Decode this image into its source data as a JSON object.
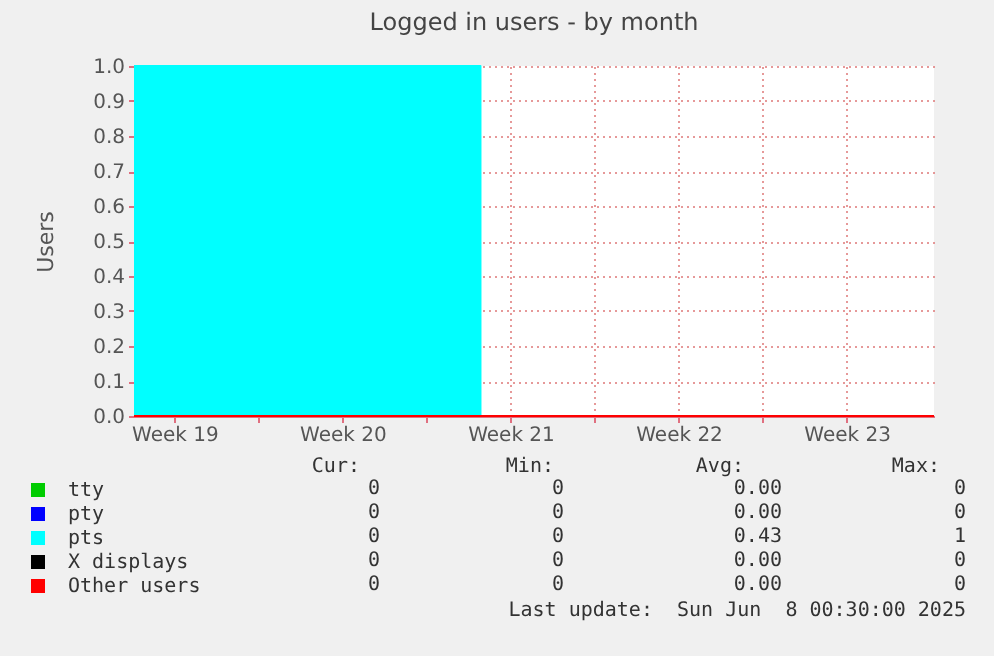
{
  "chart_data": {
    "type": "area",
    "title": "Logged in users - by month",
    "ylabel": "Users",
    "x": [
      "2025-05-06T19:40",
      "2025-05-21T06:00",
      "2025-05-21T06:00",
      "2025-06-09T03:20"
    ],
    "series": [
      {
        "name": "tty",
        "type": "line",
        "color": "#00cc00",
        "values": [
          null,
          null,
          null,
          null
        ]
      },
      {
        "name": "pty",
        "type": "line",
        "color": "#0000ff",
        "values": [
          null,
          null,
          null,
          null
        ]
      },
      {
        "name": "pts",
        "color": "#00ffff",
        "values": [
          1,
          1,
          0,
          0
        ]
      },
      {
        "name": "X displays",
        "type": "line",
        "color": "#000000",
        "values": [
          null,
          null,
          null,
          null
        ]
      },
      {
        "name": "Other users",
        "type": "line",
        "color": "#ff0000",
        "values": [
          0,
          0,
          0,
          0
        ]
      }
    ],
    "xlim": [
      "2025-05-06T19:40",
      "2025-06-09T03:20"
    ],
    "xticks": [
      {
        "value": "2025-05-08T12:00",
        "label": "Week 19"
      },
      {
        "value": "2025-05-12",
        "label": null
      },
      {
        "value": "2025-05-15T12:00",
        "label": "Week 20"
      },
      {
        "value": "2025-05-19",
        "label": null
      },
      {
        "value": "2025-05-22T12:00",
        "label": "Week 21"
      },
      {
        "value": "2025-05-26",
        "label": null
      },
      {
        "value": "2025-05-29T12:00",
        "label": "Week 22"
      },
      {
        "value": "2025-06-02",
        "label": null
      },
      {
        "value": "2025-06-05T12:00",
        "label": "Week 23"
      }
    ],
    "ylim": [
      0,
      1
    ],
    "yticks": [
      {
        "value": 0,
        "label": "0.0"
      },
      {
        "value": 0.1,
        "label": "0.1"
      },
      {
        "value": 0.2,
        "label": "0.2"
      },
      {
        "value": 0.3,
        "label": "0.3"
      },
      {
        "value": 0.4,
        "label": "0.4"
      },
      {
        "value": 0.5,
        "label": "0.5"
      },
      {
        "value": 0.6,
        "label": "0.6"
      },
      {
        "value": 0.7,
        "label": "0.7"
      },
      {
        "value": 0.8,
        "label": "0.8"
      },
      {
        "value": 0.9,
        "label": "0.9"
      },
      {
        "value": 1,
        "label": "1.0"
      }
    ],
    "grid": true,
    "legend": "bottom left",
    "annotations": [
      "Cur:",
      "Min:",
      "Avg:",
      "Max:",
      "0",
      "0",
      "0.00",
      "0",
      "0",
      "0",
      "0.00",
      "0",
      "0",
      "0",
      "0.43",
      "1",
      "0",
      "0",
      "0.00",
      "0",
      "0",
      "0",
      "0.00",
      "0",
      "Last update:  Sun Jun  8 00:30:00 2025"
    ]
  }
}
